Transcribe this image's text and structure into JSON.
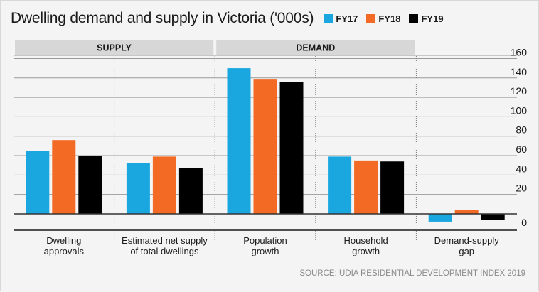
{
  "chart_data": {
    "type": "bar",
    "title": "Dwelling demand and supply in Victoria ('000s)",
    "groups": [
      {
        "label": "SUPPLY",
        "categories": [
          0,
          1
        ]
      },
      {
        "label": "DEMAND",
        "categories": [
          2,
          3
        ]
      }
    ],
    "categories": [
      [
        "Dwelling",
        "approvals"
      ],
      [
        "Estimated net supply",
        "of total dwellings"
      ],
      [
        "Population",
        "growth"
      ],
      [
        "Household",
        "growth"
      ],
      [
        "Demand-supply",
        "gap"
      ]
    ],
    "series": [
      {
        "name": "FY17",
        "color": "#1aa7e0",
        "values": [
          65,
          52,
          150,
          59,
          -8
        ]
      },
      {
        "name": "FY18",
        "color": "#f26a24",
        "values": [
          76,
          59,
          139,
          55,
          4
        ]
      },
      {
        "name": "FY19",
        "color": "#000000",
        "values": [
          60,
          47,
          136,
          54,
          -6
        ]
      }
    ],
    "ylim": [
      -12,
      165
    ],
    "yticks": [
      0,
      20,
      40,
      60,
      80,
      100,
      120,
      140,
      160
    ],
    "ytick_labels": [
      "0",
      "20",
      "40",
      "60",
      "80",
      "100",
      "120",
      "140",
      "160"
    ],
    "gridlines": true,
    "legend_position": "top, inline with title",
    "source": "SOURCE: UDIA RESIDENTIAL DEVELOPMENT INDEX 2019"
  }
}
